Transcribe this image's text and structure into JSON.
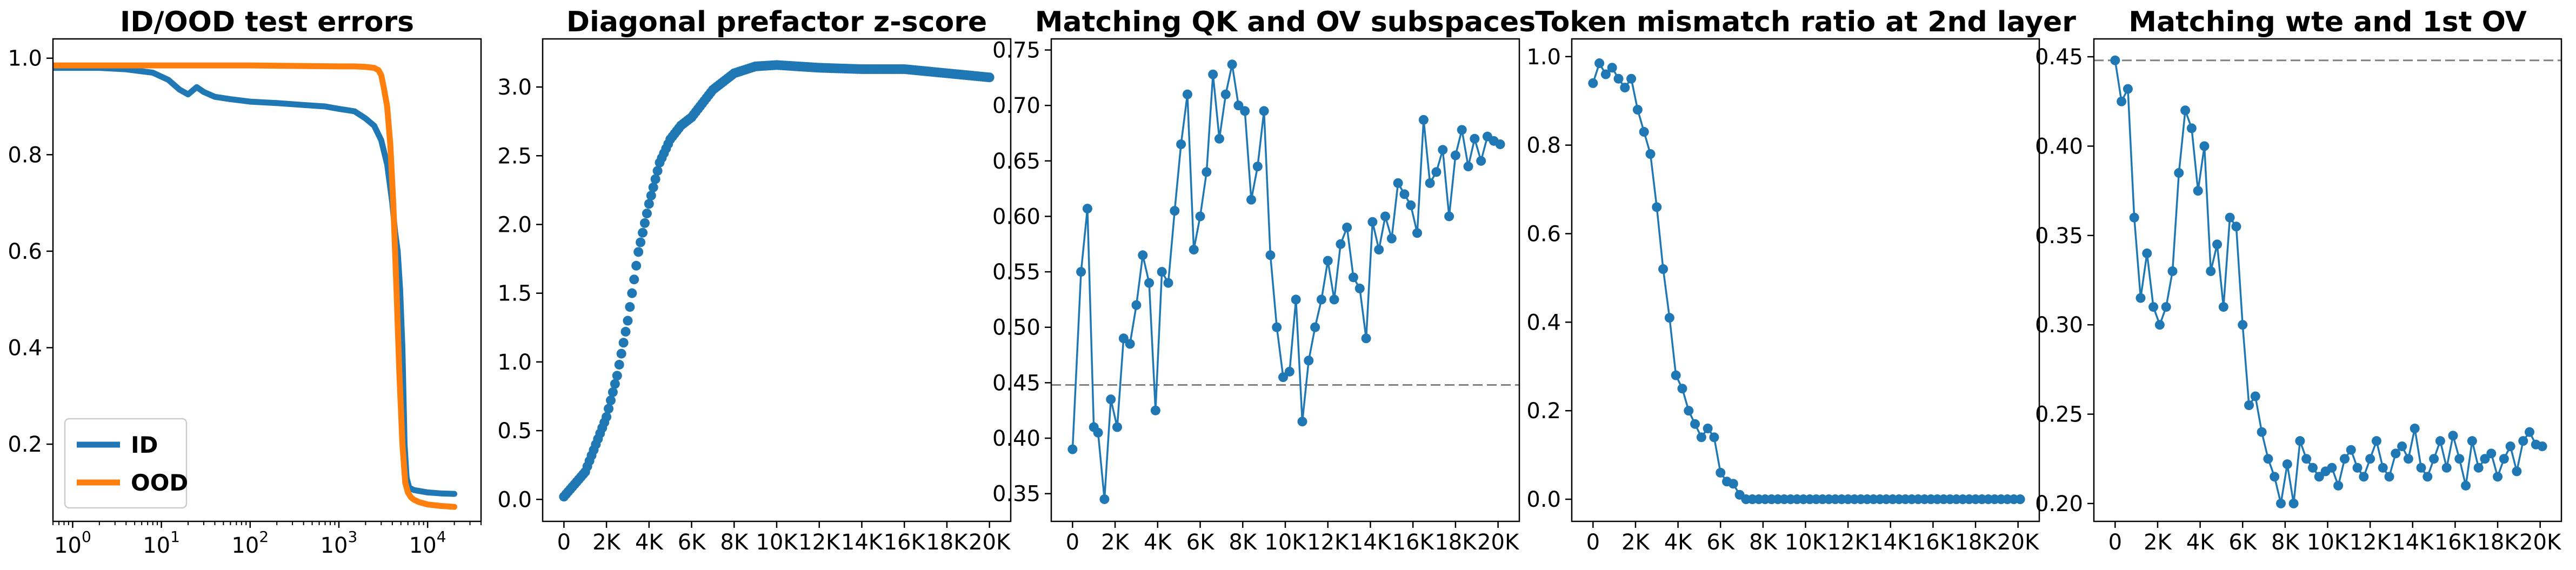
{
  "chart_data": [
    {
      "type": "line",
      "title": "ID/OOD test errors",
      "xlabel": "",
      "ylabel": "",
      "xscale": "log",
      "xlim": [
        0.6,
        40000
      ],
      "ylim": [
        0.04,
        1.04
      ],
      "xticks": [
        {
          "value": 1,
          "base": "10",
          "exp": "0"
        },
        {
          "value": 10,
          "base": "10",
          "exp": "1"
        },
        {
          "value": 100,
          "base": "10",
          "exp": "2"
        },
        {
          "value": 1000,
          "base": "10",
          "exp": "3"
        },
        {
          "value": 10000,
          "base": "10",
          "exp": "4"
        }
      ],
      "yticks": [
        0.2,
        0.4,
        0.6,
        0.8,
        1.0
      ],
      "ytick_labels": [
        "0.2",
        "0.4",
        "0.6",
        "0.8",
        "1.0"
      ],
      "legend": {
        "position": "lower-left",
        "entries": [
          "ID",
          "OOD"
        ]
      },
      "series": [
        {
          "name": "ID",
          "color": "#1f77b4",
          "x": [
            0.6,
            1,
            2,
            4,
            8,
            12,
            16,
            20,
            25,
            30,
            40,
            60,
            100,
            200,
            400,
            700,
            1000,
            1500,
            2000,
            2500,
            3000,
            3500,
            4000,
            4300,
            4600,
            4900,
            5200,
            5500,
            5800,
            6200,
            7000,
            8000,
            10000,
            14000,
            20000
          ],
          "y": [
            0.98,
            0.98,
            0.98,
            0.977,
            0.97,
            0.955,
            0.935,
            0.925,
            0.94,
            0.93,
            0.92,
            0.915,
            0.91,
            0.907,
            0.903,
            0.9,
            0.895,
            0.89,
            0.875,
            0.86,
            0.83,
            0.78,
            0.7,
            0.64,
            0.6,
            0.52,
            0.4,
            0.2,
            0.13,
            0.11,
            0.105,
            0.103,
            0.1,
            0.098,
            0.097
          ]
        },
        {
          "name": "OOD",
          "color": "#ff7f0e",
          "x": [
            0.6,
            1,
            10,
            100,
            1000,
            1500,
            2000,
            2500,
            2800,
            3000,
            3200,
            3500,
            3800,
            4100,
            4500,
            4800,
            5200,
            5600,
            6000,
            6500,
            7000,
            8000,
            10000,
            14000,
            20000
          ],
          "y": [
            0.985,
            0.985,
            0.985,
            0.985,
            0.983,
            0.983,
            0.982,
            0.98,
            0.975,
            0.965,
            0.94,
            0.9,
            0.82,
            0.7,
            0.5,
            0.35,
            0.2,
            0.12,
            0.1,
            0.09,
            0.085,
            0.08,
            0.075,
            0.072,
            0.07
          ]
        }
      ]
    },
    {
      "type": "scatter",
      "title": "Diagonal prefactor z-score",
      "xlabel": "",
      "ylabel": "",
      "xlim": [
        -1000,
        21000
      ],
      "ylim": [
        -0.16,
        3.35
      ],
      "xticks": [
        0,
        2000,
        4000,
        6000,
        8000,
        10000,
        12000,
        14000,
        16000,
        18000,
        20000
      ],
      "xtick_labels": [
        "0",
        "2K",
        "4K",
        "6K",
        "8K",
        "10K",
        "12K",
        "14K",
        "16K",
        "18K",
        "20K"
      ],
      "yticks": [
        0.0,
        0.5,
        1.0,
        1.5,
        2.0,
        2.5,
        3.0
      ],
      "ytick_labels": [
        "0.0",
        "0.5",
        "1.0",
        "1.5",
        "2.0",
        "2.5",
        "3.0"
      ],
      "series": [
        {
          "color": "#1f77b4",
          "anchors_x": [
            0,
            1000,
            2000,
            2500,
            3000,
            3500,
            4000,
            4500,
            5000,
            5500,
            6000,
            6500,
            7000,
            8000,
            9000,
            10000,
            12000,
            14000,
            16000,
            18000,
            20000
          ],
          "anchors_y": [
            0.02,
            0.2,
            0.6,
            0.9,
            1.3,
            1.8,
            2.15,
            2.45,
            2.62,
            2.72,
            2.78,
            2.88,
            2.98,
            3.1,
            3.15,
            3.16,
            3.14,
            3.13,
            3.13,
            3.1,
            3.07
          ],
          "step": 100
        }
      ]
    },
    {
      "type": "line",
      "title": "Matching QK and OV subspaces",
      "xlabel": "",
      "ylabel": "",
      "xlim": [
        -1000,
        21000
      ],
      "ylim": [
        0.325,
        0.76
      ],
      "xticks": [
        0,
        2000,
        4000,
        6000,
        8000,
        10000,
        12000,
        14000,
        16000,
        18000,
        20000
      ],
      "xtick_labels": [
        "0",
        "2K",
        "4K",
        "6K",
        "8K",
        "10K",
        "12K",
        "14K",
        "16K",
        "18K",
        "20K"
      ],
      "yticks": [
        0.35,
        0.4,
        0.45,
        0.5,
        0.55,
        0.6,
        0.65,
        0.7,
        0.75
      ],
      "ytick_labels": [
        "0.35",
        "0.40",
        "0.45",
        "0.50",
        "0.55",
        "0.60",
        "0.65",
        "0.70",
        "0.75"
      ],
      "hline": 0.448,
      "series": [
        {
          "color": "#1f77b4",
          "x": [
            0,
            400,
            700,
            1000,
            1200,
            1500,
            1800,
            2100,
            2400,
            2700,
            3000,
            3300,
            3600,
            3900,
            4200,
            4500,
            4800,
            5100,
            5400,
            5700,
            6000,
            6300,
            6600,
            6900,
            7200,
            7500,
            7800,
            8100,
            8400,
            8700,
            9000,
            9300,
            9600,
            9900,
            10200,
            10500,
            10800,
            11100,
            11400,
            11700,
            12000,
            12300,
            12600,
            12900,
            13200,
            13500,
            13800,
            14100,
            14400,
            14700,
            15000,
            15300,
            15600,
            15900,
            16200,
            16500,
            16800,
            17100,
            17400,
            17700,
            18000,
            18300,
            18600,
            18900,
            19200,
            19500,
            19800,
            20100
          ],
          "y": [
            0.39,
            0.55,
            0.607,
            0.41,
            0.405,
            0.345,
            0.435,
            0.41,
            0.49,
            0.485,
            0.52,
            0.565,
            0.54,
            0.425,
            0.55,
            0.54,
            0.605,
            0.665,
            0.71,
            0.57,
            0.6,
            0.64,
            0.728,
            0.67,
            0.71,
            0.737,
            0.7,
            0.695,
            0.615,
            0.645,
            0.695,
            0.565,
            0.5,
            0.455,
            0.46,
            0.525,
            0.415,
            0.47,
            0.5,
            0.525,
            0.56,
            0.525,
            0.575,
            0.59,
            0.545,
            0.535,
            0.49,
            0.595,
            0.57,
            0.6,
            0.58,
            0.63,
            0.62,
            0.61,
            0.585,
            0.687,
            0.63,
            0.64,
            0.66,
            0.6,
            0.655,
            0.678,
            0.645,
            0.67,
            0.65,
            0.672,
            0.668,
            0.665
          ]
        }
      ]
    },
    {
      "type": "line",
      "title": "Token mismatch ratio at 2nd layer",
      "xlabel": "",
      "ylabel": "",
      "xlim": [
        -1000,
        21000
      ],
      "ylim": [
        -0.05,
        1.04
      ],
      "xticks": [
        0,
        2000,
        4000,
        6000,
        8000,
        10000,
        12000,
        14000,
        16000,
        18000,
        20000
      ],
      "xtick_labels": [
        "0",
        "2K",
        "4K",
        "6K",
        "8K",
        "10K",
        "12K",
        "14K",
        "16K",
        "18K",
        "20K"
      ],
      "yticks": [
        0.0,
        0.2,
        0.4,
        0.6,
        0.8,
        1.0
      ],
      "ytick_labels": [
        "0.0",
        "0.2",
        "0.4",
        "0.6",
        "0.8",
        "1.0"
      ],
      "series": [
        {
          "color": "#1f77b4",
          "x": [
            0,
            300,
            600,
            900,
            1200,
            1500,
            1800,
            2100,
            2400,
            2700,
            3000,
            3300,
            3600,
            3900,
            4200,
            4500,
            4800,
            5100,
            5400,
            5700,
            6000,
            6300,
            6600,
            6900,
            7200,
            7500,
            7800,
            8100,
            8400,
            8700,
            9000,
            9300,
            9600,
            9900,
            10200,
            10500,
            10800,
            11100,
            11400,
            11700,
            12000,
            12300,
            12600,
            12900,
            13200,
            13500,
            13800,
            14100,
            14400,
            14700,
            15000,
            15300,
            15600,
            15900,
            16200,
            16500,
            16800,
            17100,
            17400,
            17700,
            18000,
            18300,
            18600,
            18900,
            19200,
            19500,
            19800,
            20100
          ],
          "y": [
            0.94,
            0.985,
            0.96,
            0.975,
            0.95,
            0.93,
            0.95,
            0.88,
            0.83,
            0.78,
            0.66,
            0.52,
            0.41,
            0.28,
            0.25,
            0.2,
            0.17,
            0.14,
            0.16,
            0.14,
            0.06,
            0.04,
            0.035,
            0.01,
            0.0,
            0.0,
            0.0,
            0.0,
            0.0,
            0.0,
            0.0,
            0.0,
            0.0,
            0.0,
            0.0,
            0.0,
            0.0,
            0.0,
            0.0,
            0.0,
            0.0,
            0.0,
            0.0,
            0.0,
            0.0,
            0.0,
            0.0,
            0.0,
            0.0,
            0.0,
            0.0,
            0.0,
            0.0,
            0.0,
            0.0,
            0.0,
            0.0,
            0.0,
            0.0,
            0.0,
            0.0,
            0.0,
            0.0,
            0.0,
            0.0,
            0.0,
            0.0,
            0.0
          ]
        }
      ]
    },
    {
      "type": "line",
      "title": "Matching wte and 1st OV",
      "xlabel": "",
      "ylabel": "",
      "xlim": [
        -1000,
        21000
      ],
      "ylim": [
        0.19,
        0.46
      ],
      "xticks": [
        0,
        2000,
        4000,
        6000,
        8000,
        10000,
        12000,
        14000,
        16000,
        18000,
        20000
      ],
      "xtick_labels": [
        "0",
        "2K",
        "4K",
        "6K",
        "8K",
        "10K",
        "12K",
        "14K",
        "16K",
        "18K",
        "20K"
      ],
      "yticks": [
        0.2,
        0.25,
        0.3,
        0.35,
        0.4,
        0.45
      ],
      "ytick_labels": [
        "0.20",
        "0.25",
        "0.30",
        "0.35",
        "0.40",
        "0.45"
      ],
      "hline": 0.448,
      "series": [
        {
          "color": "#1f77b4",
          "x": [
            0,
            300,
            600,
            900,
            1200,
            1500,
            1800,
            2100,
            2400,
            2700,
            3000,
            3300,
            3600,
            3900,
            4200,
            4500,
            4800,
            5100,
            5400,
            5700,
            6000,
            6300,
            6600,
            6900,
            7200,
            7500,
            7800,
            8100,
            8400,
            8700,
            9000,
            9300,
            9600,
            9900,
            10200,
            10500,
            10800,
            11100,
            11400,
            11700,
            12000,
            12300,
            12600,
            12900,
            13200,
            13500,
            13800,
            14100,
            14400,
            14700,
            15000,
            15300,
            15600,
            15900,
            16200,
            16500,
            16800,
            17100,
            17400,
            17700,
            18000,
            18300,
            18600,
            18900,
            19200,
            19500,
            19800,
            20100
          ],
          "y": [
            0.448,
            0.425,
            0.432,
            0.36,
            0.315,
            0.34,
            0.31,
            0.3,
            0.31,
            0.33,
            0.385,
            0.42,
            0.41,
            0.375,
            0.4,
            0.33,
            0.345,
            0.31,
            0.36,
            0.355,
            0.3,
            0.255,
            0.26,
            0.24,
            0.225,
            0.215,
            0.2,
            0.222,
            0.2,
            0.235,
            0.225,
            0.22,
            0.215,
            0.218,
            0.22,
            0.21,
            0.225,
            0.23,
            0.22,
            0.215,
            0.225,
            0.235,
            0.22,
            0.215,
            0.228,
            0.232,
            0.225,
            0.242,
            0.22,
            0.215,
            0.225,
            0.235,
            0.22,
            0.238,
            0.225,
            0.21,
            0.235,
            0.22,
            0.225,
            0.228,
            0.215,
            0.225,
            0.232,
            0.218,
            0.235,
            0.24,
            0.233,
            0.232
          ]
        }
      ]
    }
  ]
}
